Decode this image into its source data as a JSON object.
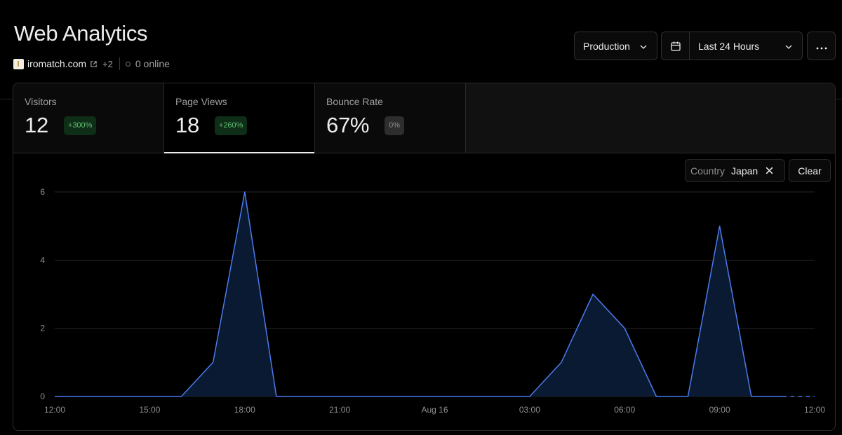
{
  "page": {
    "title": "Web Analytics",
    "domain": "iromatch.com",
    "extra_domains": "+2",
    "online": "0 online"
  },
  "controls": {
    "environment": "Production",
    "range": "Last 24 Hours"
  },
  "tabs": [
    {
      "label": "Visitors",
      "value": "12",
      "change": "+300%"
    },
    {
      "label": "Page Views",
      "value": "18",
      "change": "+260%"
    },
    {
      "label": "Bounce Rate",
      "value": "67%",
      "change": "0%"
    }
  ],
  "filter": {
    "key": "Country",
    "value": "Japan",
    "clear_label": "Clear"
  },
  "colors": {
    "line": "#4b7bec",
    "fill": "#0b1a33",
    "badge_up": "#62c073"
  },
  "chart_data": {
    "type": "area",
    "x_tick_labels": [
      "12:00",
      "15:00",
      "18:00",
      "21:00",
      "Aug 16",
      "03:00",
      "06:00",
      "09:00",
      "12:00"
    ],
    "y_tick_labels": [
      "0",
      "2",
      "4",
      "6"
    ],
    "ylim": [
      0,
      6
    ],
    "x_hours": [
      0,
      1,
      2,
      3,
      4,
      5,
      6,
      7,
      8,
      9,
      10,
      11,
      12,
      13,
      14,
      15,
      16,
      17,
      18,
      19,
      20,
      21,
      22,
      23
    ],
    "values": [
      0,
      0,
      0,
      0,
      0,
      1,
      6,
      0,
      0,
      0,
      0,
      0,
      0,
      0,
      0,
      0,
      1,
      3,
      2,
      0,
      0,
      5,
      0,
      0
    ],
    "dashed_tail": [
      23,
      24
    ],
    "grid": true
  }
}
